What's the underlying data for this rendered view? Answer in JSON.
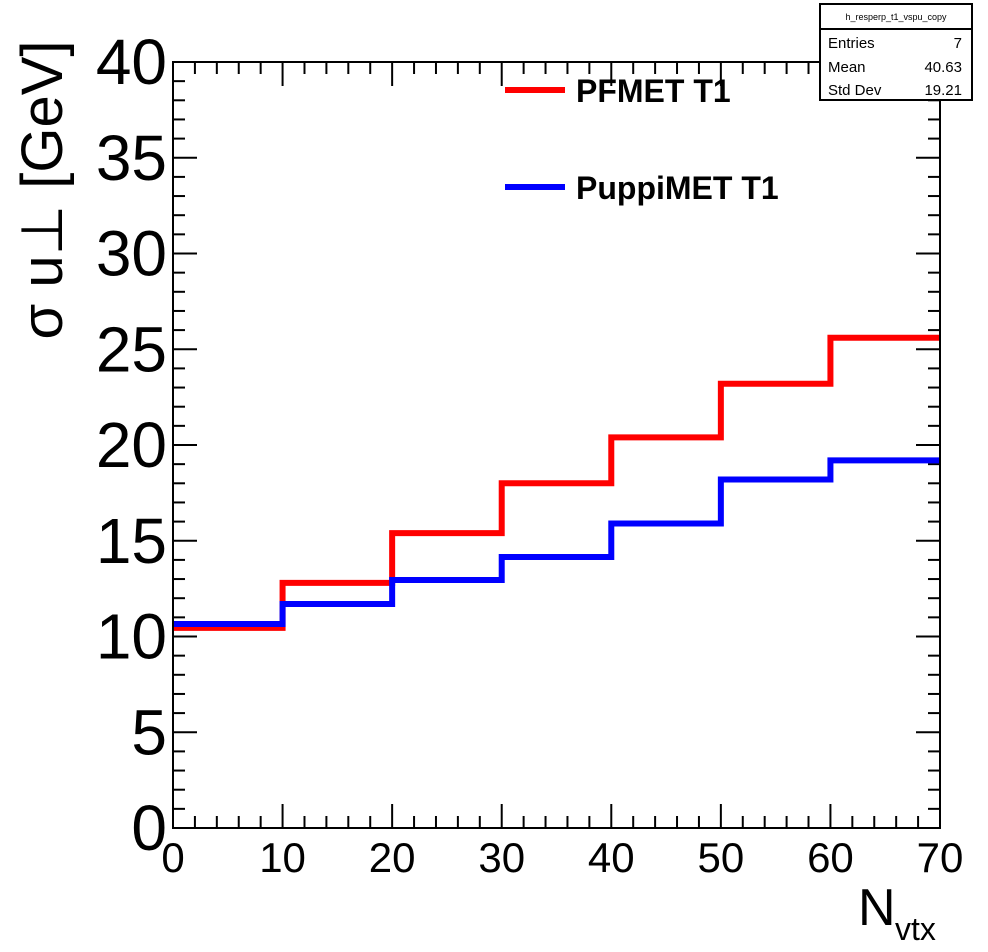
{
  "chart_data": {
    "type": "line",
    "step": true,
    "title": "",
    "xlabel": "N",
    "xlabel_sub": "vtx",
    "ylabel": "σ u⊥ [GeV]",
    "xlim": [
      0,
      70
    ],
    "ylim": [
      0,
      40
    ],
    "x_ticks": [
      "0",
      "10",
      "20",
      "30",
      "40",
      "50",
      "60",
      "70"
    ],
    "y_ticks": [
      "0",
      "5",
      "10",
      "15",
      "20",
      "25",
      "30",
      "35",
      "40"
    ],
    "bin_edges": [
      0,
      10,
      20,
      30,
      40,
      50,
      60,
      70
    ],
    "legend_position": "top-right",
    "series": [
      {
        "name": "PFMET T1",
        "color": "#ff0000",
        "values": [
          10.45,
          12.8,
          15.4,
          18.0,
          20.4,
          23.2,
          25.6
        ]
      },
      {
        "name": "PuppiMET T1",
        "color": "#0000ff",
        "values": [
          10.65,
          11.7,
          12.95,
          14.15,
          15.9,
          18.2,
          19.2
        ]
      }
    ],
    "stats_box": {
      "name": "h_resperp_t1_vspu_copy",
      "rows": [
        {
          "label": "Entries",
          "value": "7"
        },
        {
          "label": "Mean",
          "value": "40.63"
        },
        {
          "label": "Std Dev",
          "value": "19.21"
        }
      ]
    }
  }
}
